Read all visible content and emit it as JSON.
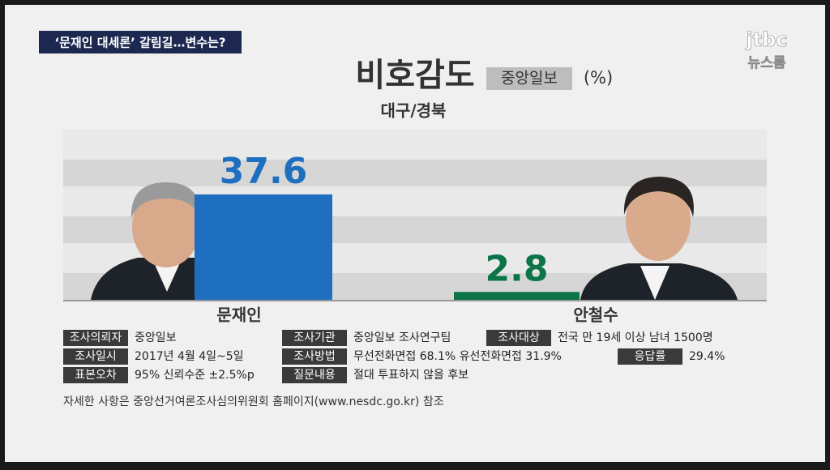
{
  "header": {
    "tag": "‘문재인 대세론’ 갈림길…변수는?",
    "logo": "jtbc",
    "logo_sub": "뉴스룸"
  },
  "chart_data": {
    "type": "bar",
    "title": "비호감도",
    "source": "중앙일보",
    "unit": "(%)",
    "subtitle": "대구/경북",
    "categories": [
      "문재인",
      "안철수"
    ],
    "values": [
      37.6,
      2.8
    ],
    "colors": [
      "#1f6fc0",
      "#0b7547"
    ]
  },
  "survey": [
    {
      "label": "조사의뢰자",
      "value": "중앙일보"
    },
    {
      "label": "조사기관",
      "value": "중앙일보 조사연구팀"
    },
    {
      "label": "조사대상",
      "value": "전국 만 19세 이상 남녀 1500명"
    },
    {
      "label": "조사일시",
      "value": "2017년 4월 4일~5일"
    },
    {
      "label": "조사방법",
      "value": "무선전화면접 68.1% 유선전화면접 31.9%"
    },
    {
      "label": "응답률",
      "value": "29.4%"
    },
    {
      "label": "표본오차",
      "value": "95% 신뢰수준 ±2.5%p"
    },
    {
      "label": "질문내용",
      "value": "절대 투표하지 않을 후보"
    }
  ],
  "footnote": "자세한 사항은 중앙선거여론조사심의위원회 홈페이지(www.nesdc.go.kr) 참조"
}
